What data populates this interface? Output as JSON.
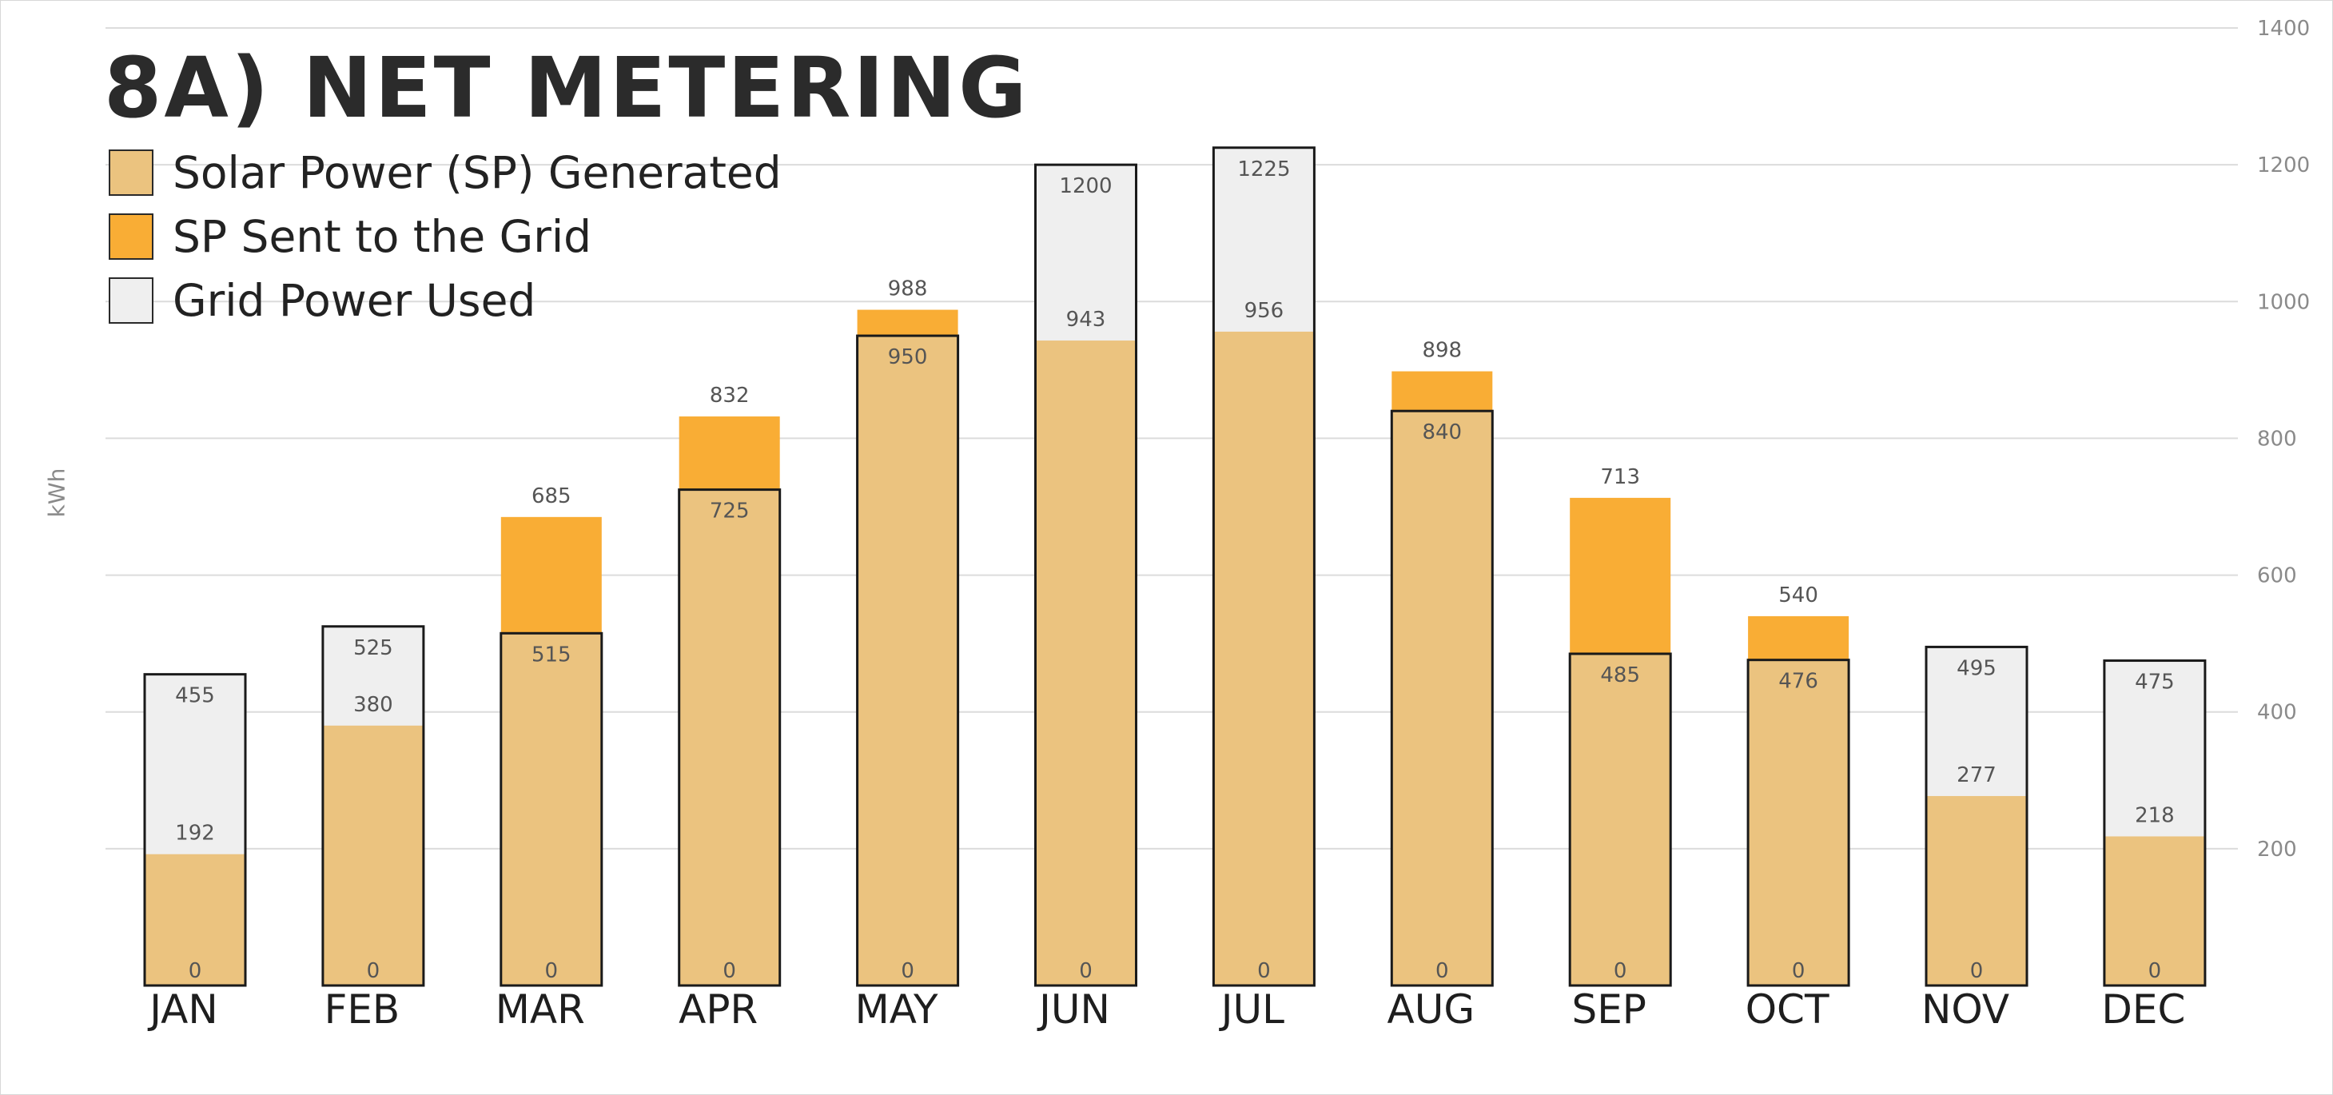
{
  "chart_data": {
    "type": "bar",
    "title": "8A) NET METERING",
    "ylabel": "kWh",
    "ylim": [
      0,
      1400
    ],
    "yticks": [
      200,
      400,
      600,
      800,
      1000,
      1200,
      1400
    ],
    "grid": true,
    "legend_position": "top-left",
    "colors": {
      "solar_generated": "#ebc37f",
      "sent_to_grid": "#f9ad35",
      "grid_used": "#efefef",
      "outline": "#1a1a1a"
    },
    "categories": [
      "JAN",
      "FEB",
      "MAR",
      "APR",
      "MAY",
      "JUN",
      "JUL",
      "AUG",
      "SEP",
      "OCT",
      "NOV",
      "DEC"
    ],
    "series": [
      {
        "name": "Solar Power (SP) Generated",
        "values": [
          192,
          380,
          685,
          832,
          988,
          943,
          956,
          898,
          713,
          540,
          277,
          218
        ]
      },
      {
        "name": "SP Sent to the Grid",
        "values": [
          0,
          0,
          170,
          107,
          38,
          0,
          0,
          58,
          228,
          64,
          0,
          0
        ]
      },
      {
        "name": "Grid Power Used",
        "values": [
          455,
          525,
          515,
          725,
          950,
          1200,
          1225,
          840,
          485,
          476,
          495,
          475
        ]
      }
    ],
    "baseline_labels": [
      "0",
      "0",
      "0",
      "0",
      "0",
      "0",
      "0",
      "0",
      "0",
      "0",
      "0",
      "0"
    ]
  }
}
